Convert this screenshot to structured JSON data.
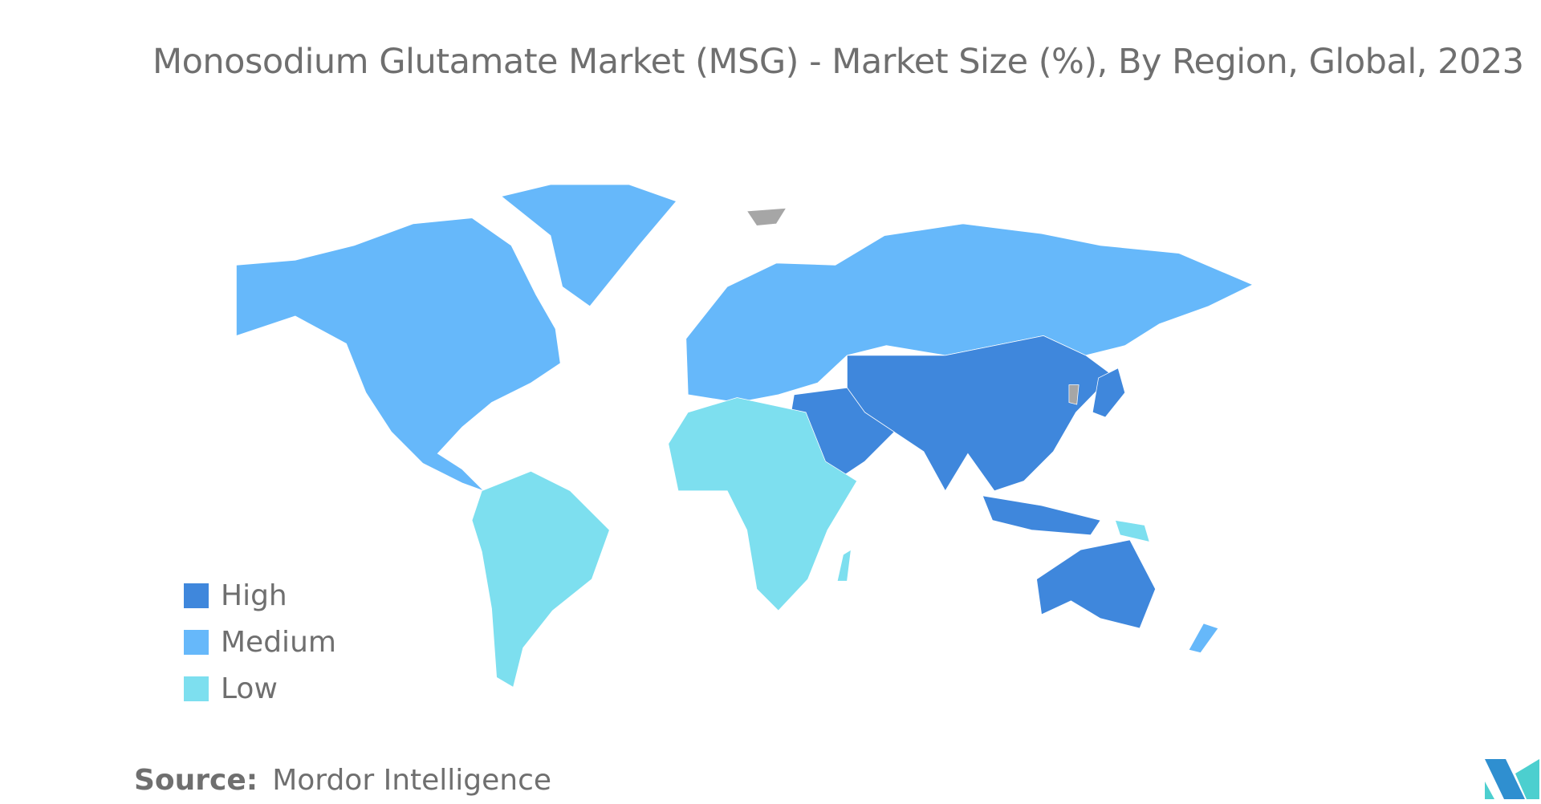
{
  "chart_data": {
    "type": "map",
    "title": "Monosodium Glutamate Market (MSG) - Market Size (%), By Region, Global, 2023",
    "legend": [
      {
        "label": "High",
        "color": "#3f87dc"
      },
      {
        "label": "Medium",
        "color": "#66b8fa"
      },
      {
        "label": "Low",
        "color": "#7ddfef"
      }
    ],
    "no_data_color": "#a6a6a6",
    "regions": [
      {
        "name": "North America",
        "level": "Medium"
      },
      {
        "name": "Greenland",
        "level": "Medium"
      },
      {
        "name": "Europe and Russia",
        "level": "Medium"
      },
      {
        "name": "Asia-Pacific",
        "level": "High"
      },
      {
        "name": "Middle East",
        "level": "High"
      },
      {
        "name": "Australia",
        "level": "High"
      },
      {
        "name": "New Zealand",
        "level": "Medium"
      },
      {
        "name": "South America",
        "level": "Low"
      },
      {
        "name": "Africa",
        "level": "Low"
      }
    ],
    "legend_position": "bottom-left"
  },
  "source": {
    "label": "Source:",
    "value": "Mordor Intelligence"
  }
}
